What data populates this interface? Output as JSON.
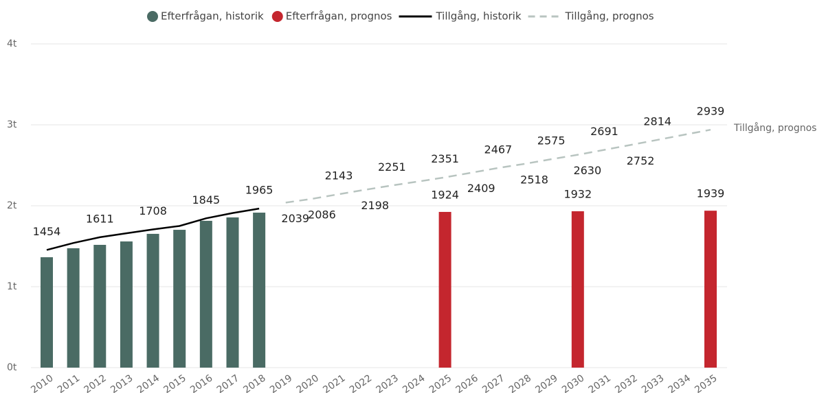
{
  "chart_data": {
    "type": "combo",
    "categories": [
      "2010",
      "2011",
      "2012",
      "2013",
      "2014",
      "2015",
      "2016",
      "2017",
      "2018",
      "2019",
      "2020",
      "2021",
      "2022",
      "2023",
      "2024",
      "2025",
      "2026",
      "2027",
      "2028",
      "2029",
      "2030",
      "2031",
      "2032",
      "2033",
      "2034",
      "2035"
    ],
    "ylim": [
      0,
      4000
    ],
    "yticks": [
      {
        "value": 0,
        "label": "0t"
      },
      {
        "value": 1000,
        "label": "1t"
      },
      {
        "value": 2000,
        "label": "2t"
      },
      {
        "value": 3000,
        "label": "3t"
      },
      {
        "value": 4000,
        "label": "4t"
      }
    ],
    "grid": true,
    "legend": "top",
    "series": [
      {
        "name": "Efterfrågan, historik",
        "type": "bar",
        "color": "#4a6b64",
        "values": [
          1364,
          1475,
          1517,
          1559,
          1653,
          1703,
          1814,
          1856,
          1915,
          null,
          null,
          null,
          null,
          null,
          null,
          null,
          null,
          null,
          null,
          null,
          null,
          null,
          null,
          null,
          null,
          null
        ]
      },
      {
        "name": "Efterfrågan, prognos",
        "type": "bar",
        "color": "#c4262e",
        "values": [
          null,
          null,
          null,
          null,
          null,
          null,
          null,
          null,
          null,
          null,
          null,
          null,
          null,
          null,
          null,
          1924,
          null,
          null,
          null,
          null,
          1932,
          null,
          null,
          null,
          null,
          1939
        ],
        "value_labels": [
          null,
          null,
          null,
          null,
          null,
          null,
          null,
          null,
          null,
          null,
          null,
          null,
          null,
          null,
          null,
          "1924",
          null,
          null,
          null,
          null,
          "1932",
          null,
          null,
          null,
          null,
          "1939"
        ]
      },
      {
        "name": "Tillgång, historik",
        "type": "line",
        "color": "#000000",
        "values": [
          1454,
          1540,
          1611,
          1660,
          1708,
          1750,
          1845,
          1910,
          1965,
          null,
          null,
          null,
          null,
          null,
          null,
          null,
          null,
          null,
          null,
          null,
          null,
          null,
          null,
          null,
          null,
          null
        ],
        "value_labels": [
          "1454",
          null,
          "1611",
          null,
          "1708",
          null,
          "1845",
          null,
          "1965",
          null,
          null,
          null,
          null,
          null,
          null,
          null,
          null,
          null,
          null,
          null,
          null,
          null,
          null,
          null,
          null,
          null
        ]
      },
      {
        "name": "Tillgång, prognos",
        "type": "line",
        "dashed": true,
        "color": "#b8c4c0",
        "values": [
          null,
          null,
          null,
          null,
          null,
          null,
          null,
          null,
          null,
          2039,
          2086,
          2143,
          2198,
          2251,
          2300,
          2351,
          2409,
          2467,
          2518,
          2575,
          2630,
          2691,
          2752,
          2814,
          2877,
          2939
        ],
        "value_labels": [
          null,
          null,
          null,
          null,
          null,
          null,
          null,
          null,
          null,
          "2039",
          "2086",
          "2143",
          "2198",
          "2251",
          null,
          "2351",
          "2409",
          "2467",
          "2518",
          "2575",
          "2630",
          "2691",
          "2752",
          "2814",
          null,
          "2939"
        ]
      }
    ]
  }
}
